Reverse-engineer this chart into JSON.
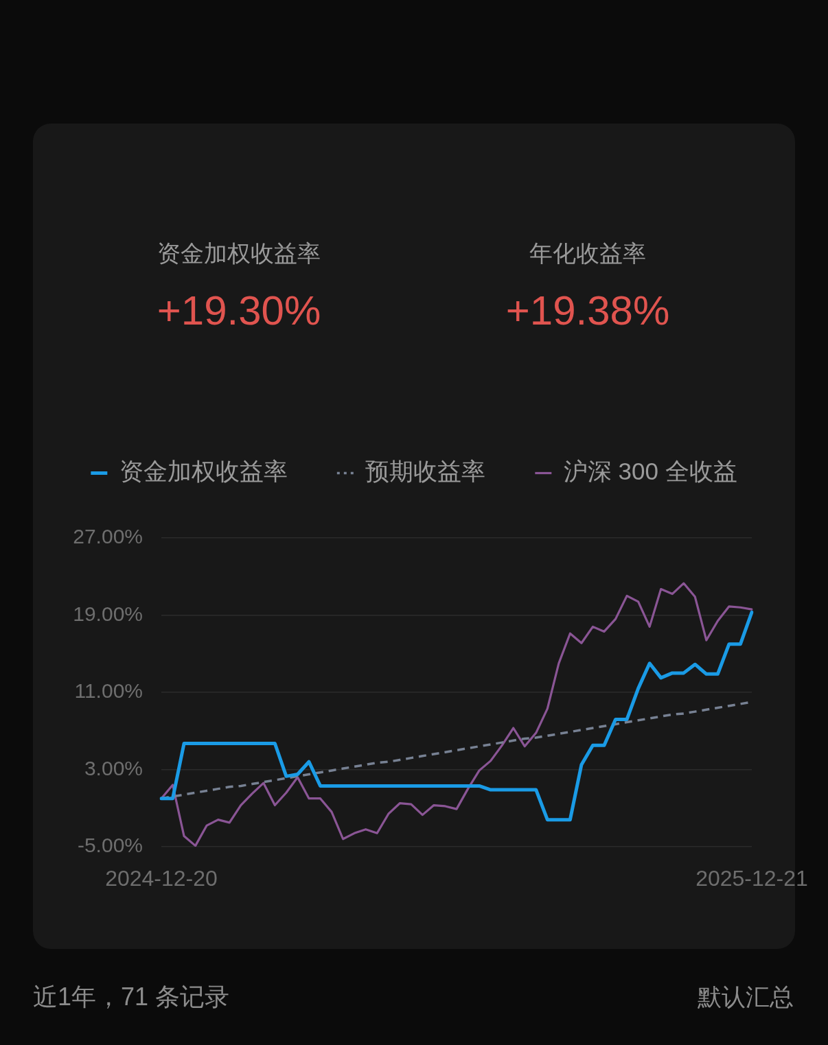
{
  "chart_data": [
    {
      "type": "other",
      "annotations": [
        "资金加权收益率",
        "+19.30%",
        "年化收益率",
        "+19.38%"
      ]
    },
    {
      "type": "line",
      "categories": [
        "2024-12-20",
        null,
        null,
        null,
        null,
        null,
        null,
        null,
        null,
        null,
        null,
        null,
        null,
        null,
        null,
        null,
        null,
        null,
        null,
        null,
        null,
        null,
        null,
        null,
        null,
        null,
        null,
        null,
        null,
        null,
        null,
        null,
        null,
        null,
        null,
        null,
        null,
        null,
        null,
        null,
        null,
        null,
        null,
        null,
        null,
        null,
        null,
        null,
        null,
        null,
        null,
        null,
        "2025-12-21"
      ],
      "series": [
        {
          "name": "资金加权收益率",
          "color": "#1a9be6",
          "values": [
            0,
            0,
            5.7,
            5.7,
            5.7,
            5.7,
            5.7,
            5.7,
            5.7,
            5.7,
            5.7,
            2.3,
            2.5,
            3.8,
            1.3,
            1.3,
            1.3,
            1.3,
            1.3,
            1.3,
            1.3,
            1.3,
            1.3,
            1.3,
            1.3,
            1.3,
            1.3,
            1.3,
            1.3,
            0.9,
            0.9,
            0.9,
            0.9,
            0.9,
            -2.2,
            -2.2,
            -2.2,
            3.5,
            5.5,
            5.5,
            8.2,
            8.2,
            11.4,
            14.0,
            12.5,
            13.0,
            13.0,
            13.9,
            12.9,
            12.9,
            16.0,
            16.0,
            19.3
          ]
        },
        {
          "name": "预期收益率",
          "color": "#778193",
          "line_style": "dashed",
          "values": [
            0,
            0.2,
            0.4,
            0.6,
            0.8,
            1.0,
            1.2,
            1.3,
            1.5,
            1.7,
            1.9,
            2.1,
            2.3,
            2.5,
            2.7,
            2.9,
            3.1,
            3.3,
            3.5,
            3.7,
            3.8,
            4.0,
            4.2,
            4.4,
            4.6,
            4.8,
            5.0,
            5.2,
            5.4,
            5.6,
            5.8,
            6.0,
            6.2,
            6.3,
            6.5,
            6.7,
            6.9,
            7.1,
            7.3,
            7.5,
            7.7,
            7.9,
            8.1,
            8.3,
            8.5,
            8.7,
            8.8,
            9.0,
            9.2,
            9.4,
            9.6,
            9.8,
            10.0
          ]
        },
        {
          "name": "沪深 300 全收益",
          "color": "#8a5595",
          "values": [
            0,
            1.4,
            -3.9,
            -4.9,
            -2.8,
            -2.2,
            -2.5,
            -0.7,
            0.5,
            1.6,
            -0.7,
            0.6,
            2.2,
            0,
            0,
            -1.4,
            -4.2,
            -3.6,
            -3.2,
            -3.6,
            -1.6,
            -0.5,
            -0.6,
            -1.7,
            -0.7,
            -0.8,
            -1.1,
            1.0,
            2.9,
            3.9,
            5.5,
            7.3,
            5.4,
            6.8,
            9.3,
            14.0,
            17.1,
            16.1,
            17.8,
            17.3,
            18.6,
            21.0,
            20.4,
            17.8,
            21.7,
            21.2,
            22.3,
            20.9,
            16.4,
            18.4,
            19.9,
            19.8,
            19.6
          ]
        }
      ],
      "ylim": [
        -5,
        27
      ],
      "yticks": [
        {
          "value": -5,
          "label": "-5.00%"
        },
        {
          "value": 3,
          "label": "3.00%"
        },
        {
          "value": 11,
          "label": "11.00%"
        },
        {
          "value": 19,
          "label": "19.00%"
        },
        {
          "value": 27,
          "label": "27.00%"
        }
      ],
      "grid": "y",
      "legend": "top",
      "marker": "none",
      "line_style": "solid",
      "annotations": [
        "近1年，71 条记录",
        "默认汇总"
      ]
    }
  ]
}
